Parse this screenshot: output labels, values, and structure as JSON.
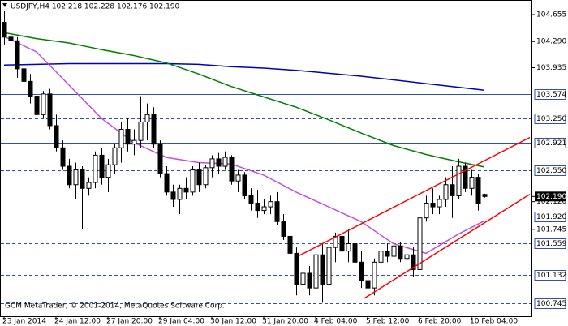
{
  "chart_data": {
    "type": "candlestick",
    "title": "USDJPY,H4  102.218 102.228 102.176 102.190",
    "footer": "GCM MetaTrader, © 2001-2014, MetaQuotes Software Corp.",
    "categories": [
      "23 Jan 2014",
      null,
      null,
      null,
      null,
      null,
      null,
      null,
      "24 Jan 12:00",
      null,
      null,
      null,
      null,
      null,
      null,
      null,
      "27 Jan 20:00",
      null,
      null,
      null,
      null,
      null,
      null,
      null,
      "29 Jan 04:00",
      null,
      null,
      null,
      null,
      null,
      null,
      null,
      "30 Jan 12:00",
      null,
      null,
      null,
      null,
      null,
      null,
      null,
      "31 Jan 20:00",
      null,
      null,
      null,
      null,
      null,
      null,
      null,
      "4 Feb 04:00",
      null,
      null,
      null,
      null,
      null,
      null,
      null,
      "5 Feb 12:00",
      null,
      null,
      null,
      null,
      null,
      null,
      null,
      "6 Feb 20:00",
      null,
      null,
      null,
      null,
      null,
      null,
      null,
      "10 Feb 04:00",
      null,
      null
    ],
    "open": [
      104.55,
      104.35,
      104.3,
      103.92,
      103.75,
      103.55,
      103.3,
      103.58,
      103.15,
      102.85,
      102.6,
      102.35,
      102.55,
      102.3,
      102.38,
      102.75,
      102.45,
      102.62,
      102.85,
      103.1,
      102.9,
      102.95,
      103.2,
      103.3,
      102.9,
      102.5,
      102.25,
      102.15,
      102.3,
      102.25,
      102.55,
      102.35,
      102.58,
      102.7,
      102.6,
      102.72,
      102.4,
      102.48,
      102.2,
      102.1,
      102.0,
      102.05,
      102.12,
      101.85,
      101.65,
      101.42,
      101.0,
      101.15,
      100.95,
      101.4,
      101.0,
      101.5,
      101.65,
      101.45,
      101.55,
      101.3,
      101.05,
      100.95,
      101.3,
      101.45,
      101.38,
      101.52,
      101.35,
      101.4,
      101.2,
      101.9,
      102.1,
      102.05,
      102.15,
      102.35,
      102.2,
      102.6,
      102.3,
      102.45,
      102.218
    ],
    "high": [
      104.7,
      104.42,
      104.35,
      104.05,
      103.85,
      103.6,
      103.62,
      103.65,
      103.3,
      102.95,
      102.7,
      102.65,
      102.6,
      102.45,
      102.8,
      102.85,
      102.7,
      102.9,
      103.2,
      103.25,
      103.1,
      103.55,
      103.45,
      103.4,
      102.95,
      102.6,
      102.35,
      102.35,
      102.45,
      102.6,
      102.65,
      102.62,
      102.75,
      102.78,
      102.8,
      102.75,
      102.55,
      102.52,
      102.3,
      102.28,
      102.15,
      102.2,
      102.25,
      101.95,
      101.75,
      101.5,
      101.2,
      101.25,
      101.45,
      101.55,
      101.55,
      101.7,
      101.72,
      101.75,
      101.6,
      101.45,
      101.15,
      101.35,
      101.6,
      101.55,
      101.6,
      101.58,
      101.45,
      101.5,
      101.95,
      102.2,
      102.3,
      102.2,
      102.45,
      102.6,
      102.7,
      102.65,
      102.55,
      102.5,
      102.228
    ],
    "low": [
      104.25,
      104.18,
      103.8,
      103.65,
      103.45,
      103.2,
      103.25,
      103.1,
      102.8,
      102.55,
      102.3,
      102.15,
      101.75,
      102.2,
      102.3,
      102.35,
      102.25,
      102.5,
      102.65,
      102.8,
      102.75,
      102.85,
      102.95,
      102.85,
      102.45,
      102.2,
      102.05,
      101.95,
      102.15,
      102.2,
      102.25,
      102.3,
      102.45,
      102.5,
      102.55,
      102.35,
      102.25,
      102.15,
      102.0,
      101.9,
      101.95,
      101.95,
      101.8,
      101.6,
      101.35,
      100.85,
      100.7,
      100.85,
      100.85,
      100.75,
      100.95,
      101.3,
      101.35,
      101.3,
      101.25,
      100.95,
      100.78,
      100.85,
      101.2,
      101.3,
      101.3,
      101.3,
      101.25,
      101.1,
      101.15,
      101.85,
      101.95,
      101.95,
      102.05,
      101.9,
      102.15,
      102.25,
      102.2,
      102.0,
      102.176
    ],
    "close": [
      104.35,
      104.3,
      103.92,
      103.75,
      103.55,
      103.3,
      103.58,
      103.15,
      102.85,
      102.6,
      102.35,
      102.55,
      102.3,
      102.38,
      102.75,
      102.45,
      102.62,
      102.85,
      103.1,
      102.9,
      102.95,
      103.2,
      103.3,
      102.9,
      102.5,
      102.25,
      102.15,
      102.3,
      102.25,
      102.55,
      102.35,
      102.58,
      102.7,
      102.6,
      102.72,
      102.4,
      102.48,
      102.2,
      102.1,
      102.0,
      102.05,
      102.12,
      101.85,
      101.65,
      101.42,
      101.0,
      101.15,
      100.95,
      101.4,
      101.0,
      101.5,
      101.65,
      101.45,
      101.55,
      101.3,
      101.05,
      100.95,
      101.3,
      101.45,
      101.38,
      101.52,
      101.35,
      101.4,
      101.2,
      101.9,
      102.1,
      102.05,
      102.15,
      102.35,
      102.2,
      102.6,
      102.3,
      102.45,
      102.1,
      102.19
    ],
    "up_color": "#ffffff",
    "down_color": "#000000",
    "edge_color": "#000000",
    "series": [
      {
        "color": "#0000c0",
        "x": [
          0,
          5,
          10,
          15,
          20,
          25,
          30,
          35,
          40,
          45,
          50,
          55,
          60,
          65,
          70,
          74
        ],
        "values": [
          103.97,
          103.98,
          103.99,
          103.99,
          103.99,
          103.99,
          103.98,
          103.95,
          103.93,
          103.9,
          103.86,
          103.82,
          103.77,
          103.72,
          103.67,
          103.63
        ]
      },
      {
        "color": "#008000",
        "x": [
          0,
          5,
          10,
          15,
          20,
          25,
          30,
          35,
          40,
          45,
          50,
          55,
          60,
          65,
          70,
          74
        ],
        "values": [
          104.41,
          104.33,
          104.27,
          104.18,
          104.1,
          104.0,
          103.85,
          103.68,
          103.54,
          103.4,
          103.23,
          103.05,
          102.88,
          102.76,
          102.66,
          102.59
        ]
      },
      {
        "color": "#c050e0",
        "x": [
          0,
          5,
          10,
          15,
          20,
          25,
          30,
          35,
          40,
          45,
          50,
          55,
          60,
          65,
          70,
          74
        ],
        "values": [
          104.36,
          104.15,
          103.7,
          103.25,
          102.92,
          102.72,
          102.65,
          102.63,
          102.48,
          102.25,
          102.05,
          101.85,
          101.55,
          101.42,
          101.68,
          101.86
        ]
      }
    ],
    "trendlines": [
      {
        "color": "#ff0000",
        "x": [
          45.5,
          81
        ],
        "values": [
          101.39,
          102.99
        ]
      },
      {
        "color": "#ff0000",
        "x": [
          55.5,
          81
        ],
        "values": [
          100.81,
          102.22
        ]
      }
    ],
    "ylim": [
      100.567,
      104.853
    ],
    "yticks": [
      104.655,
      {
        "value": 104.29,
        "label": "104.290"
      },
      103.935,
      {
        "value": 102.12,
        "label": "102.120"
      },
      101.745
    ],
    "levels": [
      {
        "value": 103.574,
        "style": "solid"
      },
      {
        "value": 103.25,
        "label": "103.250",
        "style": "dashed"
      },
      {
        "value": 102.921,
        "style": "solid"
      },
      {
        "value": 102.55,
        "label": "102.550",
        "style": "dashed"
      },
      {
        "value": 101.92,
        "label": "101.920",
        "style": "solid"
      },
      {
        "value": 101.559,
        "style": "dashed"
      },
      {
        "value": 101.132,
        "style": "dashed"
      },
      {
        "value": 100.745,
        "style": "dashed"
      }
    ],
    "level_color": "#3050b0",
    "current_price": {
      "value": 102.19,
      "label": "102.190"
    }
  }
}
